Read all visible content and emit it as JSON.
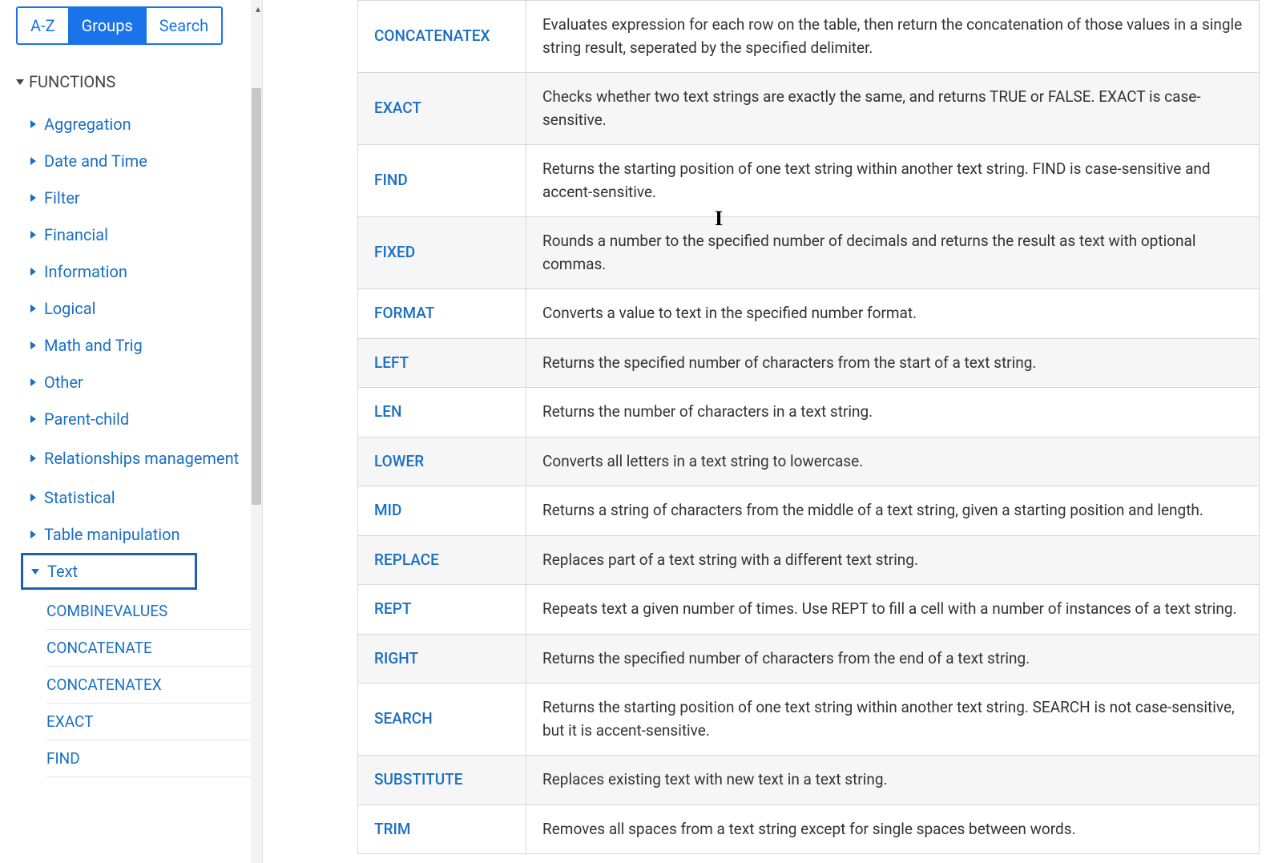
{
  "tabs": {
    "az": "A-Z",
    "groups": "Groups",
    "search": "Search"
  },
  "section_title": "FUNCTIONS",
  "categories": [
    {
      "label": "Aggregation",
      "expanded": false
    },
    {
      "label": "Date and Time",
      "expanded": false
    },
    {
      "label": "Filter",
      "expanded": false
    },
    {
      "label": "Financial",
      "expanded": false
    },
    {
      "label": "Information",
      "expanded": false
    },
    {
      "label": "Logical",
      "expanded": false
    },
    {
      "label": "Math and Trig",
      "expanded": false
    },
    {
      "label": "Other",
      "expanded": false
    },
    {
      "label": "Parent-child",
      "expanded": false
    },
    {
      "label": "Relationships management",
      "expanded": false
    },
    {
      "label": "Statistical",
      "expanded": false
    },
    {
      "label": "Table manipulation",
      "expanded": false
    },
    {
      "label": "Text",
      "expanded": true,
      "selected": true
    }
  ],
  "sub_items": [
    "COMBINEVALUES",
    "CONCATENATE",
    "CONCATENATEX",
    "EXACT",
    "FIND"
  ],
  "functions": [
    {
      "name": "CONCATENATEX",
      "desc": "Evaluates expression for each row on the table, then return the concatenation of those values in a single string result, seperated by the specified delimiter."
    },
    {
      "name": "EXACT",
      "desc": "Checks whether two text strings are exactly the same, and returns TRUE or FALSE. EXACT is case-sensitive."
    },
    {
      "name": "FIND",
      "desc": "Returns the starting position of one text string within another text string. FIND is case-sensitive and accent-sensitive."
    },
    {
      "name": "FIXED",
      "desc": "Rounds a number to the specified number of decimals and returns the result as text with optional commas."
    },
    {
      "name": "FORMAT",
      "desc": "Converts a value to text in the specified number format."
    },
    {
      "name": "LEFT",
      "desc": "Returns the specified number of characters from the start of a text string."
    },
    {
      "name": "LEN",
      "desc": "Returns the number of characters in a text string."
    },
    {
      "name": "LOWER",
      "desc": "Converts all letters in a text string to lowercase."
    },
    {
      "name": "MID",
      "desc": "Returns a string of characters from the middle of a text string, given a starting position and length."
    },
    {
      "name": "REPLACE",
      "desc": "Replaces part of a text string with a different text string."
    },
    {
      "name": "REPT",
      "desc": "Repeats text a given number of times. Use REPT to fill a cell with a number of instances of a text string."
    },
    {
      "name": "RIGHT",
      "desc": "Returns the specified number of characters from the end of a text string."
    },
    {
      "name": "SEARCH",
      "desc": "Returns the starting position of one text string within another text string. SEARCH is not case-sensitive, but it is accent-sensitive."
    },
    {
      "name": "SUBSTITUTE",
      "desc": "Replaces existing text with new text in a text string."
    },
    {
      "name": "TRIM",
      "desc": "Removes all spaces from a text string except for single spaces between words."
    }
  ],
  "colors": {
    "link": "#1a6fc4",
    "primary": "#1a73e8",
    "border": "#d8d8d8",
    "row_alt": "#f6f6f6",
    "selection_box": "#1e5fb3"
  }
}
